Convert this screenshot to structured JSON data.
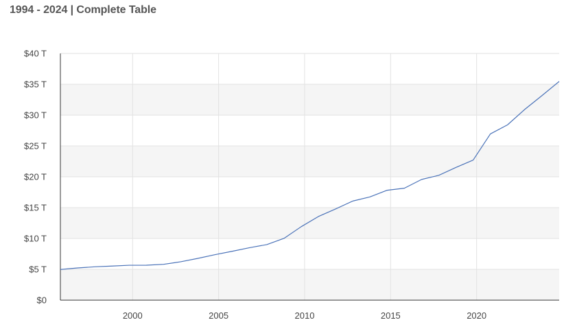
{
  "page": {
    "title": "1994 - 2024 | Complete Table"
  },
  "colors": {
    "line": "#4a72b8",
    "band": "#f5f5f5",
    "grid": "#e2e2e2",
    "axis": "#333333"
  },
  "chart_data": {
    "type": "line",
    "title": "",
    "xlabel": "",
    "ylabel": "",
    "xlim": [
      1995.8,
      2024.8
    ],
    "ylim": [
      0,
      40
    ],
    "x_ticks": [
      2000,
      2005,
      2010,
      2015,
      2020
    ],
    "x_tick_labels": [
      "2000",
      "2005",
      "2010",
      "2015",
      "2020"
    ],
    "y_ticks": [
      0,
      5,
      10,
      15,
      20,
      25,
      30,
      35,
      40
    ],
    "y_tick_labels": [
      "$0",
      "$5 T",
      "$10 T",
      "$15 T",
      "$20 T",
      "$25 T",
      "$30 T",
      "$35 T",
      "$40 T"
    ],
    "grid": true,
    "legend": "none",
    "series": [
      {
        "x": [
          1995.8,
          1996.8,
          1997.8,
          1998.8,
          1999.8,
          2000.8,
          2001.8,
          2002.8,
          2003.8,
          2004.8,
          2005.8,
          2006.8,
          2007.8,
          2008.8,
          2009.8,
          2010.8,
          2011.8,
          2012.8,
          2013.8,
          2014.8,
          2015.8,
          2016.8,
          2017.8,
          2018.8,
          2019.8,
          2020.8,
          2021.8,
          2022.8,
          2023.8,
          2024.8
        ],
        "values": [
          4.97,
          5.22,
          5.41,
          5.53,
          5.66,
          5.67,
          5.81,
          6.23,
          6.78,
          7.38,
          7.93,
          8.51,
          9.01,
          10.02,
          11.91,
          13.56,
          14.79,
          16.07,
          16.74,
          17.82,
          18.15,
          19.57,
          20.24,
          21.52,
          22.72,
          26.95,
          28.43,
          30.93,
          33.17,
          35.46
        ]
      }
    ]
  }
}
